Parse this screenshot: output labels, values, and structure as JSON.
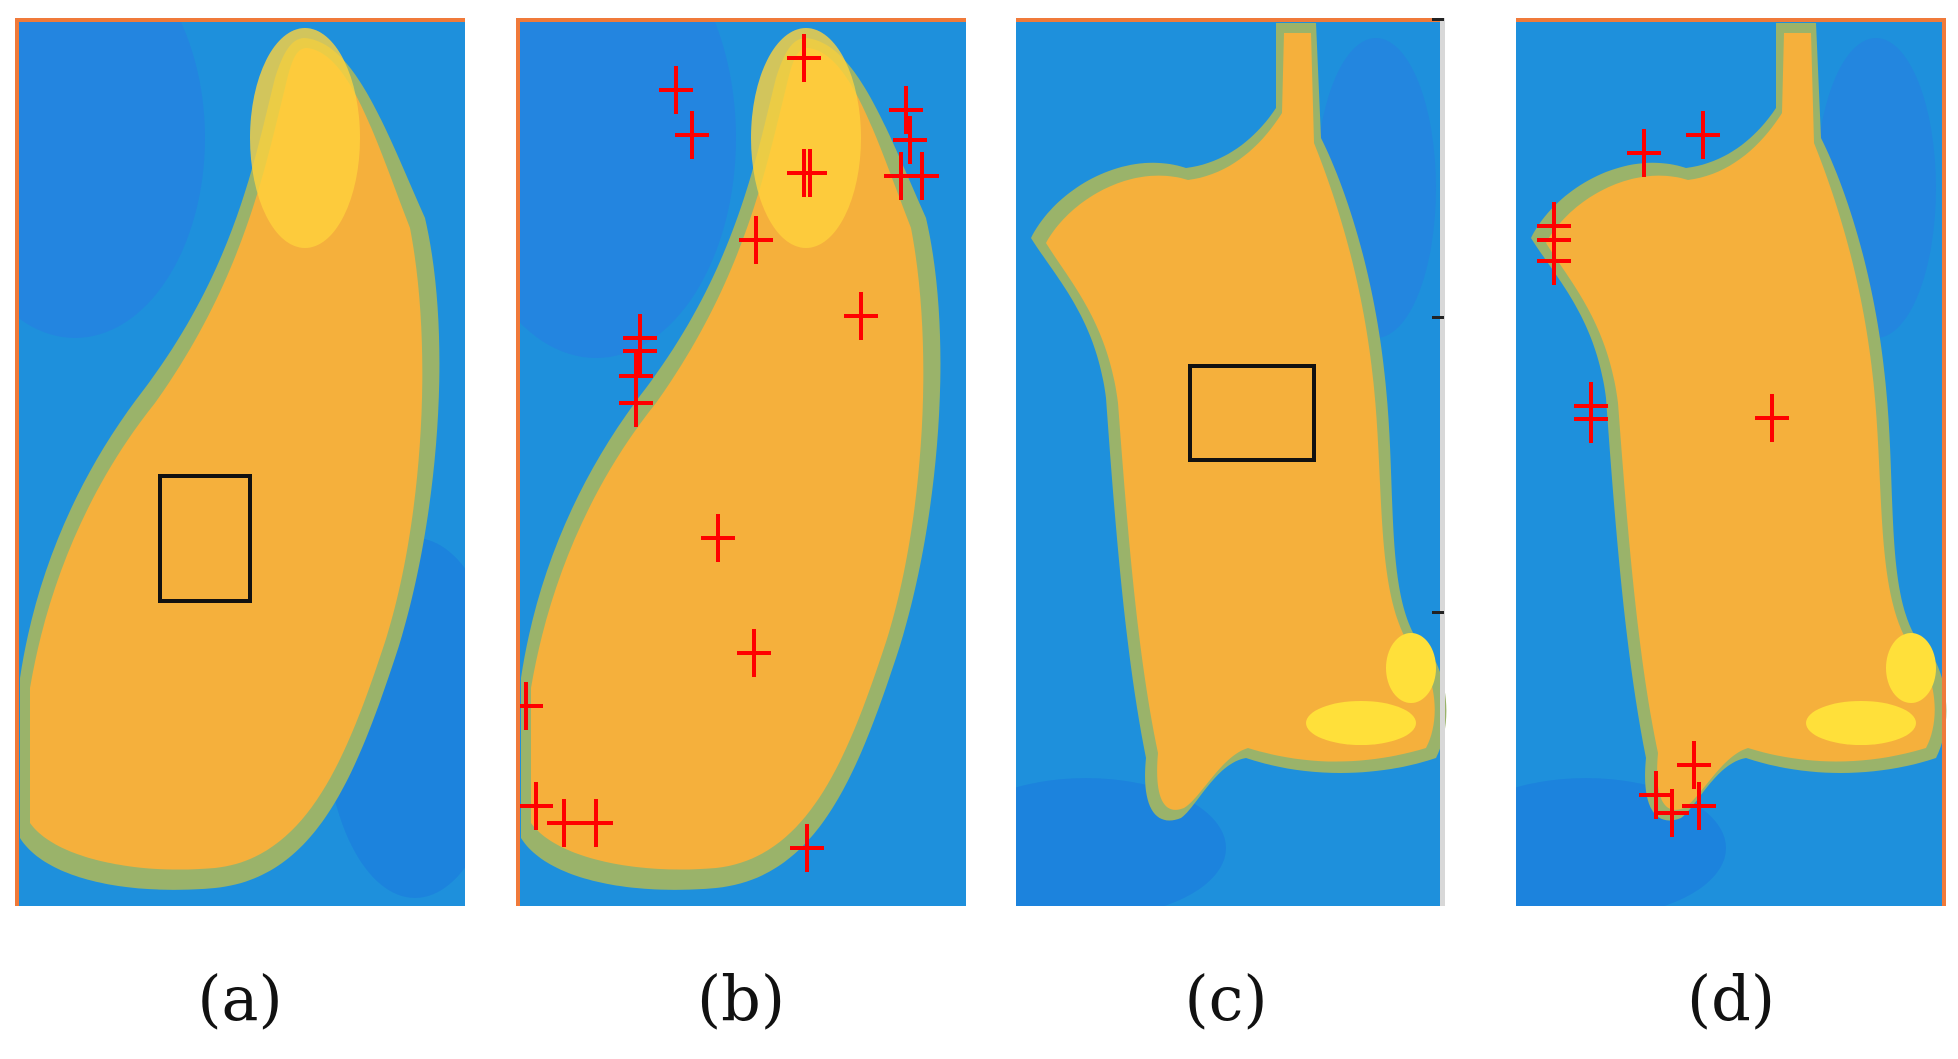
{
  "figure": {
    "panels": [
      {
        "id": "a",
        "caption": "(a)",
        "annotation": "black-box",
        "marker_color": "#ff0000"
      },
      {
        "id": "b",
        "caption": "(b)",
        "annotation": "red-cross-markers",
        "marker_color": "#ff0000"
      },
      {
        "id": "c",
        "caption": "(c)",
        "annotation": "black-box",
        "marker_color": "#ff0000"
      },
      {
        "id": "d",
        "caption": "(d)",
        "annotation": "red-cross-markers",
        "marker_color": "#ff0000"
      }
    ],
    "colors": {
      "background_blue": "#1e90dc",
      "dark_blue": "#0f60e0",
      "body_orange": "#f5b03c",
      "hot_yellow": "#ffe03a",
      "edge_green": "#9ab36a",
      "frame_orange": "#f07a3a",
      "box": "#111111",
      "marker": "#ff0000"
    }
  }
}
